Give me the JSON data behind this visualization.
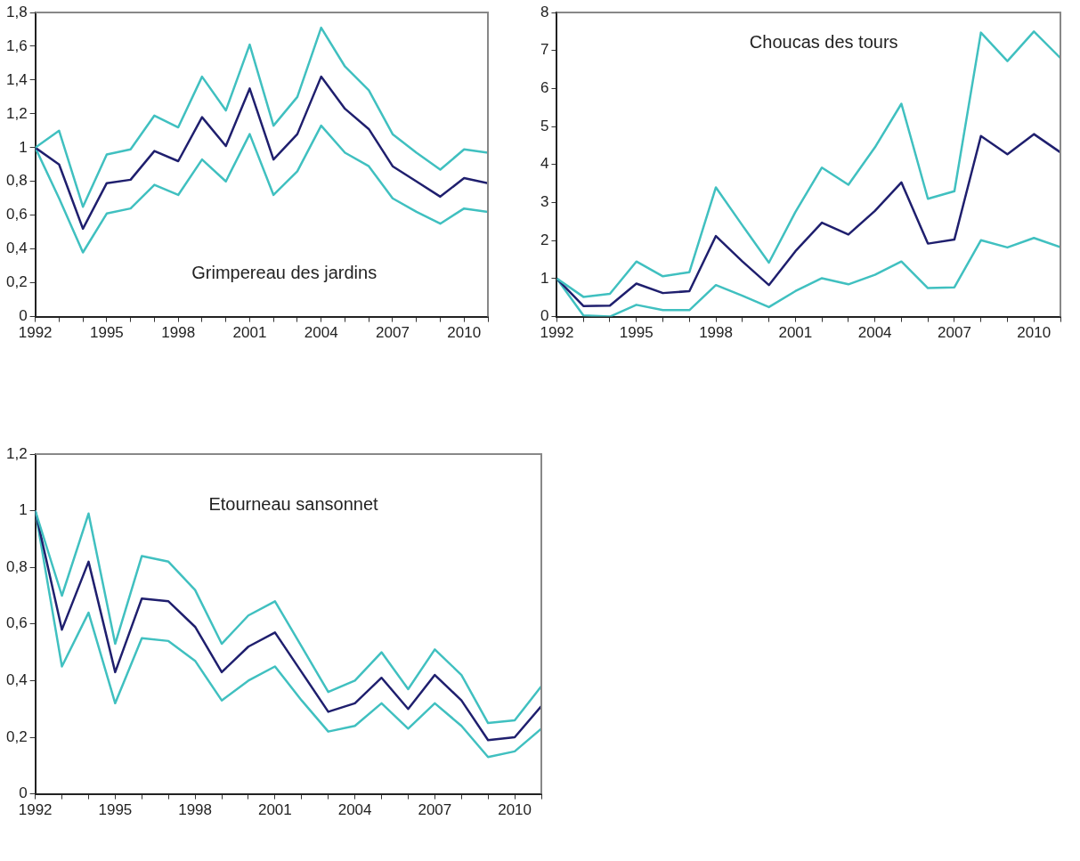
{
  "chart_data": [
    {
      "type": "line",
      "title": "Grimpereau des jardins",
      "x": [
        1992,
        1993,
        1994,
        1995,
        1996,
        1997,
        1998,
        1999,
        2000,
        2001,
        2002,
        2003,
        2004,
        2005,
        2006,
        2007,
        2008,
        2009,
        2010,
        2011
      ],
      "xlim": [
        1992,
        2011
      ],
      "xticks": [
        1992,
        {
          "value": 1993,
          "label": null
        },
        {
          "value": 1994,
          "label": null
        },
        1995,
        {
          "value": 1996,
          "label": null
        },
        {
          "value": 1997,
          "label": null
        },
        1998,
        {
          "value": 1999,
          "label": null
        },
        {
          "value": 2000,
          "label": null
        },
        2001,
        {
          "value": 2002,
          "label": null
        },
        {
          "value": 2003,
          "label": null
        },
        2004,
        {
          "value": 2005,
          "label": null
        },
        {
          "value": 2006,
          "label": null
        },
        2007,
        {
          "value": 2008,
          "label": null
        },
        {
          "value": 2009,
          "label": null
        },
        2010,
        {
          "value": 2011,
          "label": null
        }
      ],
      "ylim": [
        0,
        1.8
      ],
      "yticks": [
        0,
        {
          "value": 0.2,
          "label": "0,2"
        },
        {
          "value": 0.4,
          "label": "0,4"
        },
        {
          "value": 0.6,
          "label": "0,6"
        },
        {
          "value": 0.8,
          "label": "0,8"
        },
        1,
        {
          "value": 1.2,
          "label": "1,2"
        },
        {
          "value": 1.4,
          "label": "1,4"
        },
        {
          "value": 1.6,
          "label": "1,6"
        },
        {
          "value": 1.8,
          "label": "1,8"
        }
      ],
      "grid": false,
      "legend": false,
      "marker": "none",
      "line_style": "solid",
      "series": [
        {
          "color": "#40c0c0",
          "values": [
            1,
            1.1,
            0.65,
            0.96,
            0.99,
            1.19,
            1.12,
            1.42,
            1.22,
            1.61,
            1.13,
            1.3,
            1.71,
            1.48,
            1.34,
            1.08,
            0.97,
            0.87,
            0.99,
            0.97
          ]
        },
        {
          "color": "#1f1f6e",
          "values": [
            1,
            0.9,
            0.52,
            0.79,
            0.81,
            0.98,
            0.92,
            1.18,
            1.01,
            1.35,
            0.93,
            1.08,
            1.42,
            1.23,
            1.11,
            0.89,
            0.8,
            0.71,
            0.82,
            0.79
          ]
        },
        {
          "color": "#40c0c0",
          "values": [
            1,
            0.7,
            0.38,
            0.61,
            0.64,
            0.78,
            0.72,
            0.93,
            0.8,
            1.08,
            0.72,
            0.86,
            1.13,
            0.97,
            0.89,
            0.7,
            0.62,
            0.55,
            0.64,
            0.62
          ]
        }
      ]
    },
    {
      "type": "line",
      "title": "Choucas des tours",
      "x": [
        1992,
        1993,
        1994,
        1995,
        1996,
        1997,
        1998,
        1999,
        2000,
        2001,
        2002,
        2003,
        2004,
        2005,
        2006,
        2007,
        2008,
        2009,
        2010,
        2011
      ],
      "xlim": [
        1992,
        2011
      ],
      "xticks": [
        1992,
        {
          "value": 1993,
          "label": null
        },
        {
          "value": 1994,
          "label": null
        },
        1995,
        {
          "value": 1996,
          "label": null
        },
        {
          "value": 1997,
          "label": null
        },
        1998,
        {
          "value": 1999,
          "label": null
        },
        {
          "value": 2000,
          "label": null
        },
        2001,
        {
          "value": 2002,
          "label": null
        },
        {
          "value": 2003,
          "label": null
        },
        2004,
        {
          "value": 2005,
          "label": null
        },
        {
          "value": 2006,
          "label": null
        },
        2007,
        {
          "value": 2008,
          "label": null
        },
        {
          "value": 2009,
          "label": null
        },
        2010,
        {
          "value": 2011,
          "label": null
        }
      ],
      "ylim": [
        0,
        8
      ],
      "yticks": [
        0,
        1,
        2,
        3,
        4,
        5,
        6,
        7,
        8
      ],
      "grid": false,
      "legend": false,
      "marker": "none",
      "line_style": "solid",
      "series": [
        {
          "color": "#40c0c0",
          "values": [
            1,
            0.52,
            0.6,
            1.45,
            1.06,
            1.17,
            3.4,
            2.4,
            1.42,
            2.75,
            3.92,
            3.47,
            4.45,
            5.6,
            3.1,
            3.3,
            7.47,
            6.72,
            7.5,
            6.8
          ]
        },
        {
          "color": "#1f1f6e",
          "values": [
            1,
            0.28,
            0.29,
            0.87,
            0.62,
            0.67,
            2.12,
            1.45,
            0.83,
            1.72,
            2.47,
            2.16,
            2.78,
            3.53,
            1.92,
            2.03,
            4.75,
            4.27,
            4.8,
            4.32
          ]
        },
        {
          "color": "#40c0c0",
          "values": [
            1,
            0.03,
            0,
            0.31,
            0.17,
            0.17,
            0.83,
            0.55,
            0.25,
            0.67,
            1.01,
            0.85,
            1.1,
            1.45,
            0.75,
            0.77,
            2.01,
            1.82,
            2.07,
            1.83
          ]
        }
      ]
    },
    {
      "type": "line",
      "title": "Etourneau sansonnet",
      "x": [
        1992,
        1993,
        1994,
        1995,
        1996,
        1997,
        1998,
        1999,
        2000,
        2001,
        2002,
        2003,
        2004,
        2005,
        2006,
        2007,
        2008,
        2009,
        2010,
        2011
      ],
      "xlim": [
        1992,
        2011
      ],
      "xticks": [
        1992,
        {
          "value": 1993,
          "label": null
        },
        {
          "value": 1994,
          "label": null
        },
        1995,
        {
          "value": 1996,
          "label": null
        },
        {
          "value": 1997,
          "label": null
        },
        1998,
        {
          "value": 1999,
          "label": null
        },
        {
          "value": 2000,
          "label": null
        },
        2001,
        {
          "value": 2002,
          "label": null
        },
        {
          "value": 2003,
          "label": null
        },
        2004,
        {
          "value": 2005,
          "label": null
        },
        {
          "value": 2006,
          "label": null
        },
        2007,
        {
          "value": 2008,
          "label": null
        },
        {
          "value": 2009,
          "label": null
        },
        2010,
        {
          "value": 2011,
          "label": null
        }
      ],
      "ylim": [
        0,
        1.2
      ],
      "yticks": [
        0,
        {
          "value": 0.2,
          "label": "0,2"
        },
        {
          "value": 0.4,
          "label": "0,4"
        },
        {
          "value": 0.6,
          "label": "0,6"
        },
        {
          "value": 0.8,
          "label": "0,8"
        },
        1,
        {
          "value": 1.2,
          "label": "1,2"
        }
      ],
      "grid": false,
      "legend": false,
      "marker": "none",
      "line_style": "solid",
      "series": [
        {
          "color": "#40c0c0",
          "values": [
            1,
            0.7,
            0.99,
            0.53,
            0.84,
            0.82,
            0.72,
            0.53,
            0.63,
            0.68,
            0.52,
            0.36,
            0.4,
            0.5,
            0.37,
            0.51,
            0.42,
            0.25,
            0.26,
            0.38
          ]
        },
        {
          "color": "#1f1f6e",
          "values": [
            1,
            0.58,
            0.82,
            0.43,
            0.69,
            0.68,
            0.59,
            0.43,
            0.52,
            0.57,
            0.43,
            0.29,
            0.32,
            0.41,
            0.3,
            0.42,
            0.33,
            0.19,
            0.2,
            0.31
          ]
        },
        {
          "color": "#40c0c0",
          "values": [
            1,
            0.45,
            0.64,
            0.32,
            0.55,
            0.54,
            0.47,
            0.33,
            0.4,
            0.45,
            0.33,
            0.22,
            0.24,
            0.32,
            0.23,
            0.32,
            0.24,
            0.13,
            0.15,
            0.23
          ]
        }
      ]
    }
  ]
}
